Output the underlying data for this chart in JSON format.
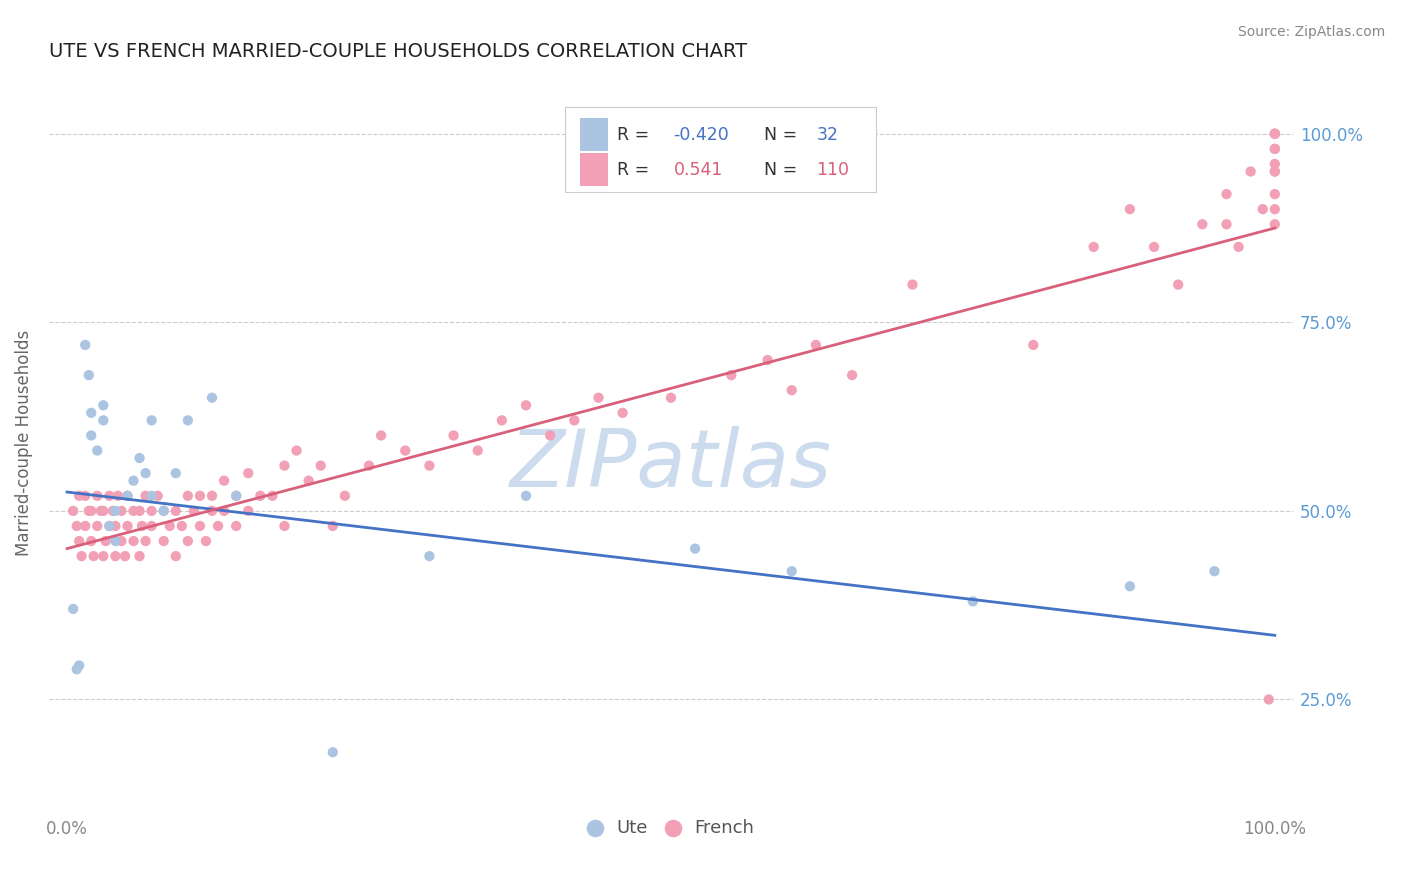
{
  "title": "UTE VS FRENCH MARRIED-COUPLE HOUSEHOLDS CORRELATION CHART",
  "source": "Source: ZipAtlas.com",
  "ylabel": "Married-couple Households",
  "yticks": [
    "25.0%",
    "50.0%",
    "75.0%",
    "100.0%"
  ],
  "ytick_vals": [
    0.25,
    0.5,
    0.75,
    1.0
  ],
  "xlim": [
    0.0,
    1.0
  ],
  "ylim": [
    0.1,
    1.08
  ],
  "ute_color": "#aac4e2",
  "french_color": "#f2a0b5",
  "ute_line_color": "#4472c4",
  "french_line_color": "#d9607a",
  "ute_R": -0.42,
  "ute_N": 32,
  "french_R": 0.541,
  "french_N": 110,
  "watermark": "ZIPatlas",
  "watermark_color": "#ccdcee",
  "title_fontsize": 14,
  "tick_fontsize": 12,
  "ute_line_x": [
    0.0,
    1.0
  ],
  "ute_line_y": [
    0.525,
    0.335
  ],
  "french_line_x": [
    0.0,
    1.0
  ],
  "french_line_y": [
    0.45,
    0.875
  ],
  "ute_x": [
    0.005,
    0.008,
    0.01,
    0.015,
    0.018,
    0.02,
    0.02,
    0.025,
    0.03,
    0.03,
    0.035,
    0.04,
    0.04,
    0.05,
    0.055,
    0.06,
    0.065,
    0.07,
    0.07,
    0.08,
    0.09,
    0.1,
    0.12,
    0.14,
    0.22,
    0.3,
    0.38,
    0.52,
    0.6,
    0.75,
    0.88,
    0.95
  ],
  "ute_y": [
    0.37,
    0.29,
    0.295,
    0.72,
    0.68,
    0.63,
    0.6,
    0.58,
    0.62,
    0.64,
    0.48,
    0.46,
    0.5,
    0.52,
    0.54,
    0.57,
    0.55,
    0.52,
    0.62,
    0.5,
    0.55,
    0.62,
    0.65,
    0.52,
    0.18,
    0.44,
    0.52,
    0.45,
    0.42,
    0.38,
    0.4,
    0.42
  ],
  "french_x": [
    0.005,
    0.008,
    0.01,
    0.01,
    0.012,
    0.015,
    0.015,
    0.018,
    0.02,
    0.02,
    0.022,
    0.025,
    0.025,
    0.028,
    0.03,
    0.03,
    0.032,
    0.035,
    0.035,
    0.038,
    0.04,
    0.04,
    0.042,
    0.045,
    0.045,
    0.048,
    0.05,
    0.05,
    0.055,
    0.055,
    0.06,
    0.06,
    0.062,
    0.065,
    0.065,
    0.07,
    0.07,
    0.075,
    0.08,
    0.08,
    0.085,
    0.09,
    0.09,
    0.095,
    0.1,
    0.1,
    0.105,
    0.11,
    0.11,
    0.115,
    0.12,
    0.12,
    0.125,
    0.13,
    0.13,
    0.14,
    0.14,
    0.15,
    0.15,
    0.16,
    0.17,
    0.18,
    0.18,
    0.19,
    0.2,
    0.21,
    0.22,
    0.23,
    0.25,
    0.26,
    0.28,
    0.3,
    0.32,
    0.34,
    0.36,
    0.38,
    0.4,
    0.42,
    0.44,
    0.46,
    0.5,
    0.55,
    0.58,
    0.6,
    0.62,
    0.65,
    0.7,
    0.8,
    0.85,
    0.88,
    0.9,
    0.92,
    0.94,
    0.96,
    0.96,
    0.97,
    0.98,
    0.99,
    0.995,
    1.0,
    1.0,
    1.0,
    1.0,
    1.0,
    1.0,
    1.0,
    1.0,
    1.0,
    1.0,
    1.0
  ],
  "french_y": [
    0.5,
    0.48,
    0.46,
    0.52,
    0.44,
    0.48,
    0.52,
    0.5,
    0.46,
    0.5,
    0.44,
    0.48,
    0.52,
    0.5,
    0.44,
    0.5,
    0.46,
    0.48,
    0.52,
    0.5,
    0.44,
    0.48,
    0.52,
    0.46,
    0.5,
    0.44,
    0.48,
    0.52,
    0.46,
    0.5,
    0.44,
    0.5,
    0.48,
    0.52,
    0.46,
    0.5,
    0.48,
    0.52,
    0.46,
    0.5,
    0.48,
    0.44,
    0.5,
    0.48,
    0.46,
    0.52,
    0.5,
    0.48,
    0.52,
    0.46,
    0.5,
    0.52,
    0.48,
    0.5,
    0.54,
    0.48,
    0.52,
    0.5,
    0.55,
    0.52,
    0.52,
    0.56,
    0.48,
    0.58,
    0.54,
    0.56,
    0.48,
    0.52,
    0.56,
    0.6,
    0.58,
    0.56,
    0.6,
    0.58,
    0.62,
    0.64,
    0.6,
    0.62,
    0.65,
    0.63,
    0.65,
    0.68,
    0.7,
    0.66,
    0.72,
    0.68,
    0.8,
    0.72,
    0.85,
    0.9,
    0.85,
    0.8,
    0.88,
    0.92,
    0.88,
    0.85,
    0.95,
    0.9,
    0.25,
    1.0,
    0.98,
    0.96,
    0.95,
    0.92,
    0.9,
    0.88,
    1.0,
    0.98,
    0.95,
    1.0
  ]
}
